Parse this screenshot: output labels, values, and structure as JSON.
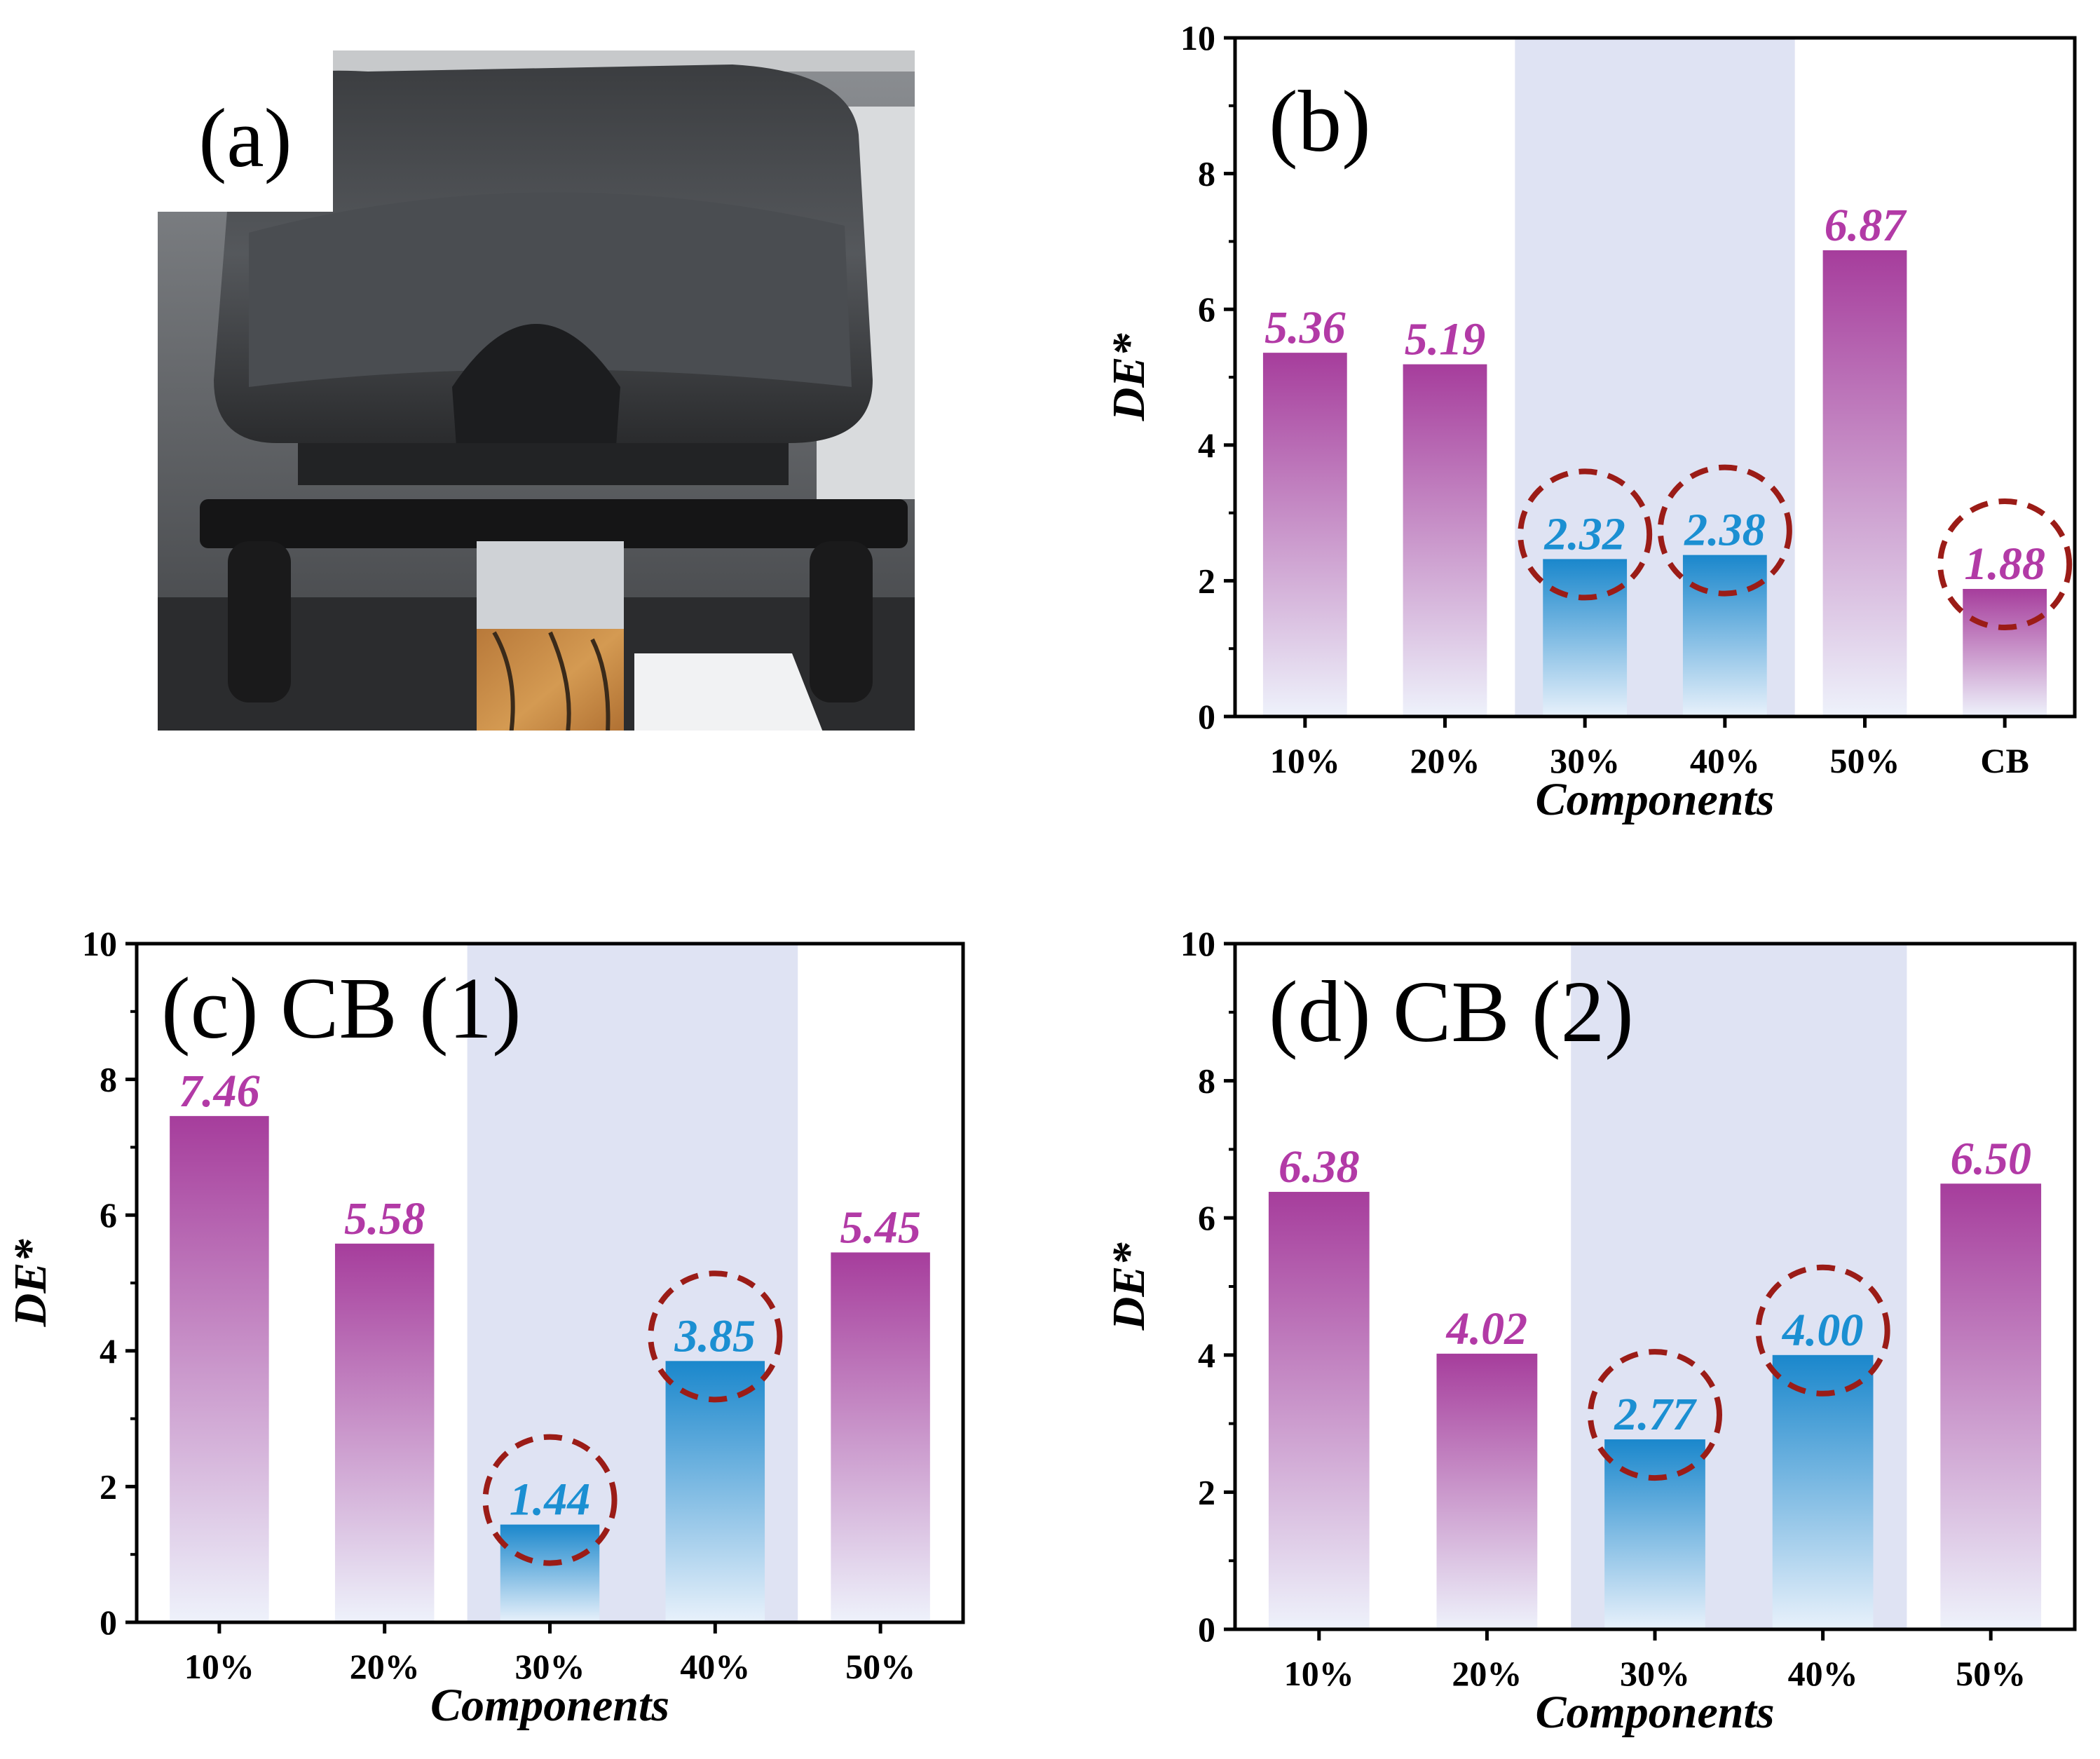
{
  "figure": {
    "panel_a_label": "(a)",
    "panel_a_description": "Colorimeter instrument measuring a wood specimen next to a white calibration card"
  },
  "colors": {
    "magenta_top": "#a63d9c",
    "magenta_bottom": "#eef2fb",
    "blue_top": "#1a87cc",
    "blue_bottom": "#e8f1fb",
    "label_magenta": "#b23aa6",
    "label_blue": "#1b8fd2",
    "highlight_band": "#dfe3f3",
    "circle": "#9b1c17"
  },
  "chart_data": [
    {
      "id": "b",
      "type": "bar",
      "title": "(b)",
      "xlabel": "Components",
      "ylabel": "DE*",
      "categories": [
        "10%",
        "20%",
        "30%",
        "40%",
        "50%",
        "CB"
      ],
      "values": [
        5.36,
        5.19,
        2.32,
        2.38,
        6.87,
        1.88
      ],
      "labels": [
        "5.36",
        "5.19",
        "2.32",
        "2.38",
        "6.87",
        "1.88"
      ],
      "bar_colors": [
        "magenta",
        "magenta",
        "blue",
        "blue",
        "magenta",
        "magenta"
      ],
      "circled": [
        false,
        false,
        true,
        true,
        false,
        true
      ],
      "highlight_categories": [
        "30%",
        "40%"
      ],
      "ylim": [
        0,
        10
      ],
      "yticks": [
        0,
        2,
        4,
        6,
        8,
        10
      ]
    },
    {
      "id": "c",
      "type": "bar",
      "title": "(c) CB (1)",
      "xlabel": "Components",
      "ylabel": "DE*",
      "categories": [
        "10%",
        "20%",
        "30%",
        "40%",
        "50%"
      ],
      "values": [
        7.46,
        5.58,
        1.44,
        3.85,
        5.45
      ],
      "labels": [
        "7.46",
        "5.58",
        "1.44",
        "3.85",
        "5.45"
      ],
      "bar_colors": [
        "magenta",
        "magenta",
        "blue",
        "blue",
        "magenta"
      ],
      "circled": [
        false,
        false,
        true,
        true,
        false
      ],
      "highlight_categories": [
        "30%",
        "40%"
      ],
      "ylim": [
        0,
        10
      ],
      "yticks": [
        0,
        2,
        4,
        6,
        8,
        10
      ]
    },
    {
      "id": "d",
      "type": "bar",
      "title": "(d) CB (2)",
      "xlabel": "Components",
      "ylabel": "DE*",
      "categories": [
        "10%",
        "20%",
        "30%",
        "40%",
        "50%"
      ],
      "values": [
        6.38,
        4.02,
        2.77,
        4.0,
        6.5
      ],
      "labels": [
        "6.38",
        "4.02",
        "2.77",
        "4.00",
        "6.50"
      ],
      "bar_colors": [
        "magenta",
        "magenta",
        "blue",
        "blue",
        "magenta"
      ],
      "circled": [
        false,
        false,
        true,
        true,
        false
      ],
      "highlight_categories": [
        "30%",
        "40%"
      ],
      "ylim": [
        0,
        10
      ],
      "yticks": [
        0,
        2,
        4,
        6,
        8,
        10
      ]
    }
  ]
}
